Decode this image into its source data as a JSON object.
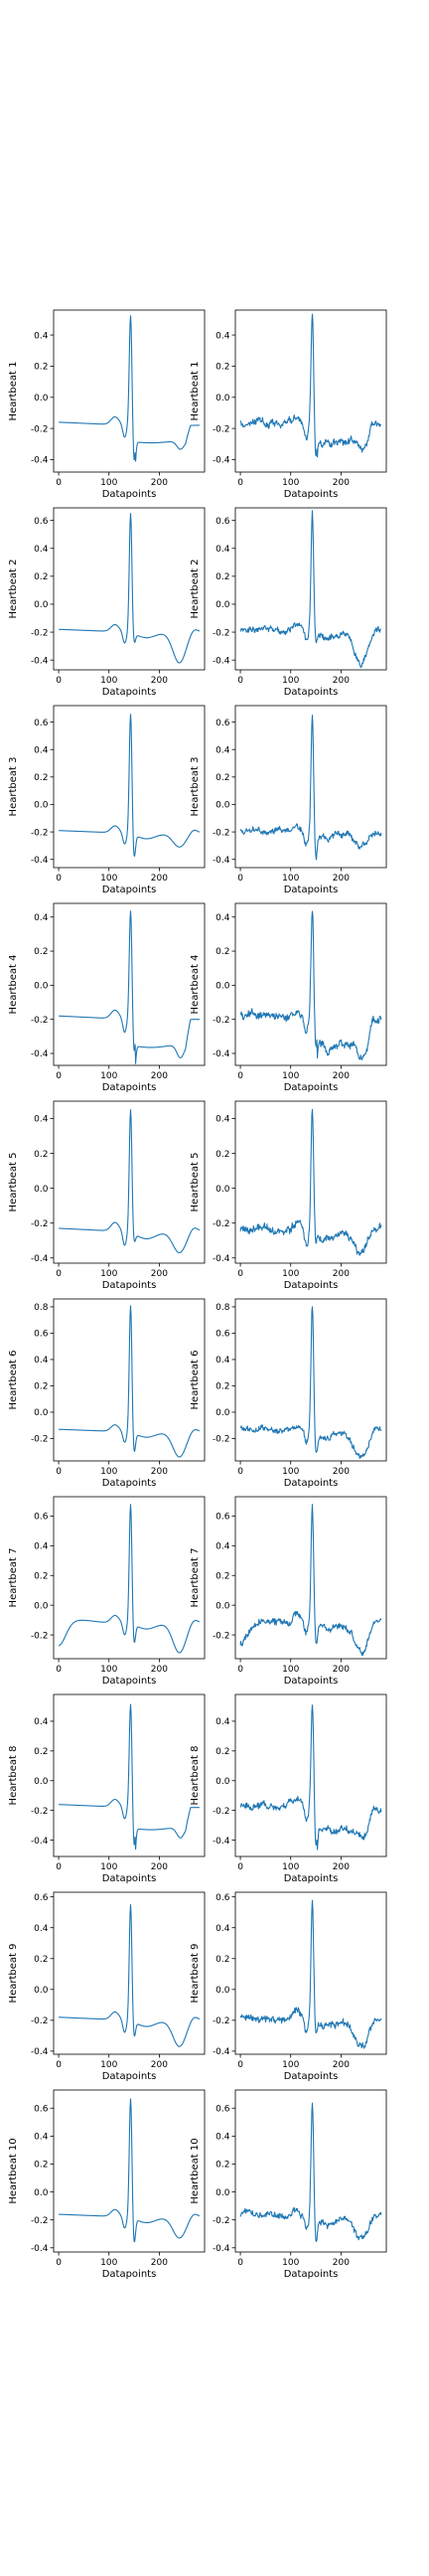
{
  "chart_data": {
    "type": "line",
    "layout": "10 rows x 2 columns of line plots; left column smooth (denoised) signal, right column noisy signal",
    "xlabel": "Datapoints",
    "ylabel_prefix": "Heartbeat",
    "xticks": [
      0,
      100,
      200
    ],
    "xlim": [
      -10,
      290
    ],
    "line_color": "#1f77b4",
    "grid": false,
    "rows": [
      {
        "ylabel": "Heartbeat 1",
        "ylim": [
          -0.48,
          0.56
        ],
        "yticks": [
          -0.4,
          -0.2,
          0.0,
          0.2,
          0.4
        ],
        "baseline": -0.18,
        "peak": 0.53,
        "nadir": -0.42,
        "t_wave": -0.33,
        "shape": "a"
      },
      {
        "ylabel": "Heartbeat 2",
        "ylim": [
          -0.47,
          0.69
        ],
        "yticks": [
          -0.4,
          -0.2,
          0.0,
          0.2,
          0.4,
          0.6
        ],
        "baseline": -0.2,
        "peak": 0.66,
        "nadir": -0.27,
        "t_wave": -0.42,
        "shape": "b"
      },
      {
        "ylabel": "Heartbeat 3",
        "ylim": [
          -0.46,
          0.72
        ],
        "yticks": [
          -0.4,
          -0.2,
          0.0,
          0.2,
          0.4,
          0.6
        ],
        "baseline": -0.21,
        "peak": 0.67,
        "nadir": -0.38,
        "t_wave": -0.31,
        "shape": "b"
      },
      {
        "ylabel": "Heartbeat 4",
        "ylim": [
          -0.47,
          0.48
        ],
        "yticks": [
          -0.4,
          -0.2,
          0.0,
          0.2,
          0.4
        ],
        "baseline": -0.2,
        "peak": 0.44,
        "nadir": -0.4,
        "t_wave": -0.42,
        "shape": "a"
      },
      {
        "ylabel": "Heartbeat 5",
        "ylim": [
          -0.43,
          0.5
        ],
        "yticks": [
          -0.4,
          -0.2,
          0.0,
          0.2,
          0.4
        ],
        "baseline": -0.25,
        "peak": 0.46,
        "nadir": -0.3,
        "t_wave": -0.37,
        "shape": "b"
      },
      {
        "ylabel": "Heartbeat 6",
        "ylim": [
          -0.37,
          0.86
        ],
        "yticks": [
          -0.2,
          0.0,
          0.2,
          0.4,
          0.6,
          0.8
        ],
        "baseline": -0.15,
        "peak": 0.82,
        "nadir": -0.3,
        "t_wave": -0.34,
        "shape": "b"
      },
      {
        "ylabel": "Heartbeat 7",
        "ylim": [
          -0.36,
          0.73
        ],
        "yticks": [
          -0.2,
          0.0,
          0.2,
          0.4,
          0.6
        ],
        "baseline": -0.12,
        "peak": 0.69,
        "nadir": -0.25,
        "t_wave": -0.32,
        "shape": "c"
      },
      {
        "ylabel": "Heartbeat 8",
        "ylim": [
          -0.51,
          0.58
        ],
        "yticks": [
          -0.4,
          -0.2,
          0.0,
          0.2,
          0.4
        ],
        "baseline": -0.18,
        "peak": 0.52,
        "nadir": -0.45,
        "t_wave": -0.38,
        "shape": "a"
      },
      {
        "ylabel": "Heartbeat 9",
        "ylim": [
          -0.42,
          0.63
        ],
        "yticks": [
          -0.4,
          -0.2,
          0.0,
          0.2,
          0.4,
          0.6
        ],
        "baseline": -0.2,
        "peak": 0.56,
        "nadir": -0.3,
        "t_wave": -0.37,
        "shape": "b"
      },
      {
        "ylabel": "Heartbeat 10",
        "ylim": [
          -0.43,
          0.73
        ],
        "yticks": [
          -0.4,
          -0.2,
          0.0,
          0.2,
          0.4,
          0.6
        ],
        "baseline": -0.18,
        "peak": 0.68,
        "nadir": -0.36,
        "t_wave": -0.33,
        "shape": "b"
      }
    ]
  }
}
